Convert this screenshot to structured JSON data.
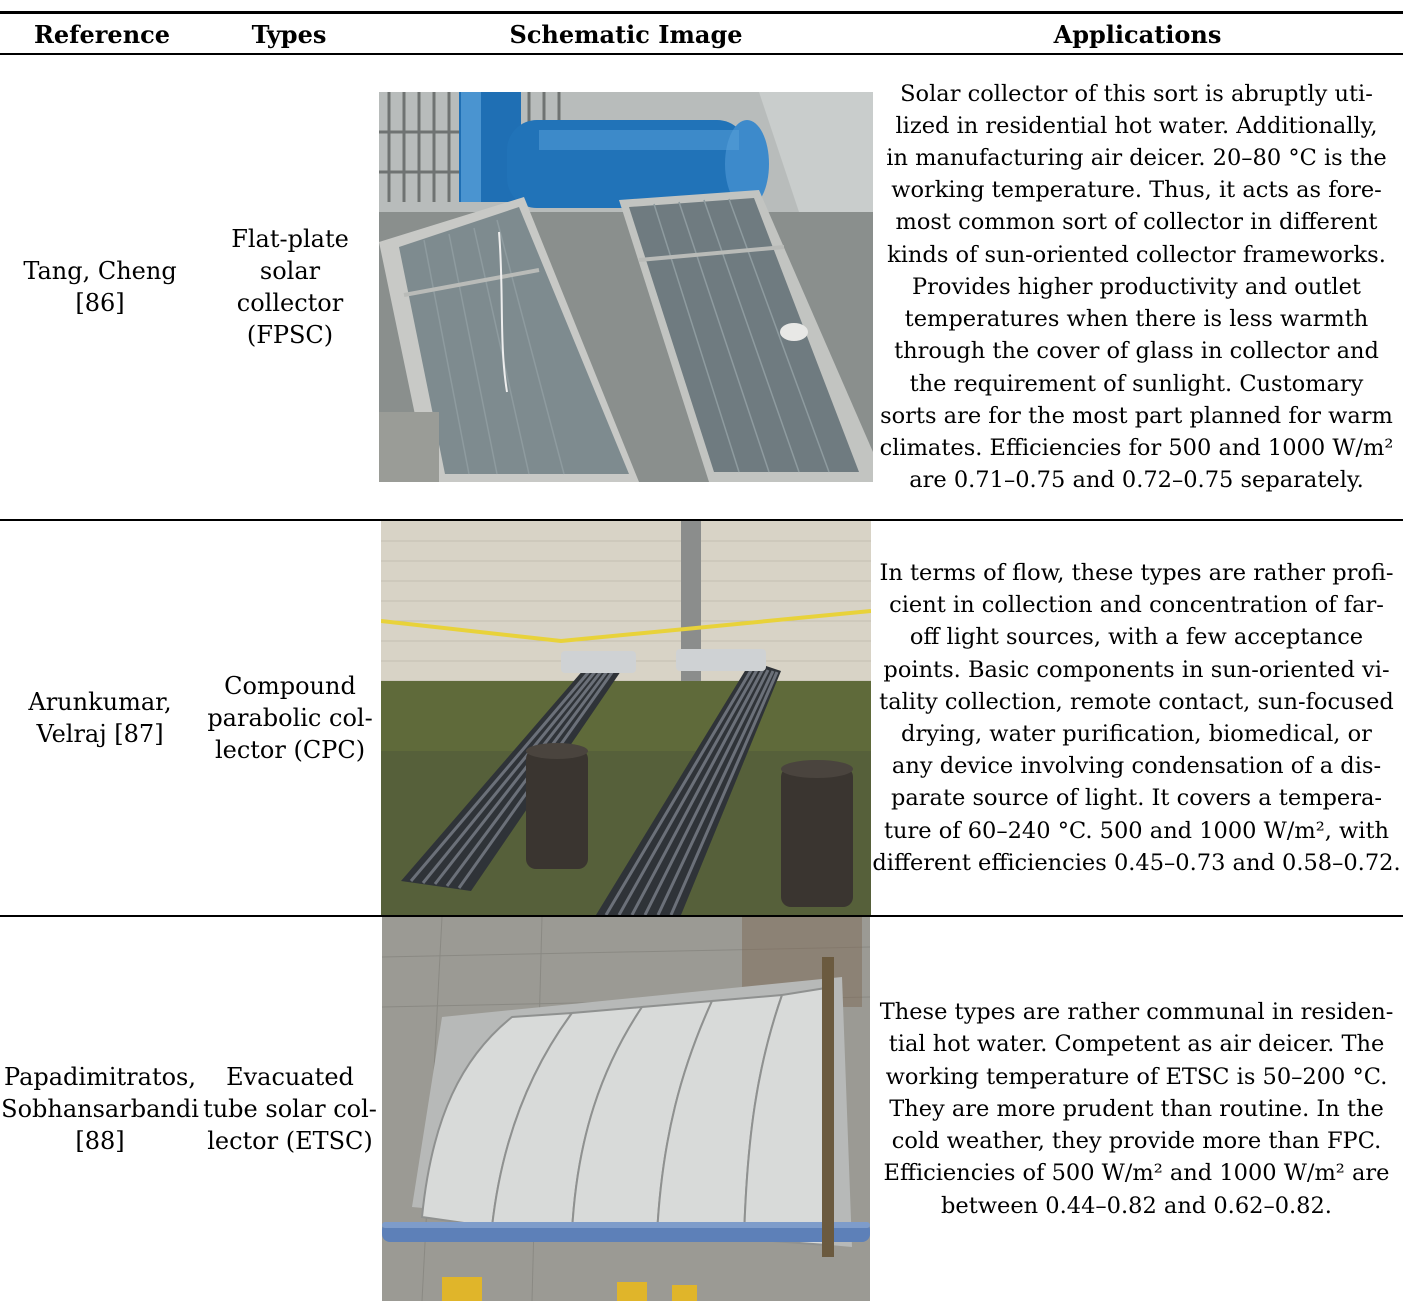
{
  "table": {
    "headers": [
      "Reference",
      "Types",
      "Schematic Image",
      "Applications"
    ],
    "rows": [
      {
        "reference": "Tang, Cheng\n[86]",
        "type": "Flat-plate solar\ncollector\n(FPSC)",
        "image": "flat-plate solar collector photo",
        "application": "Solar collector of this sort is abruptly uti-\nlized in residential hot water. Additionally,\nin manufacturing air deicer. 20–80 °C is the\nworking temperature. Thus, it acts as fore-\nmost common sort of collector in different\nkinds of sun-oriented collector frameworks.\nProvides higher productivity and outlet\ntemperatures when there is less warmth\nthrough the cover of glass in collector and\nthe requirement of sunlight. Customary\nsorts are for the most part planned for warm\nclimates. Efficiencies for 500 and 1000 W/m² \nare 0.71–0.75 and 0.72–0.75 separately."
      },
      {
        "reference": "Arunkumar,\nVelraj [87]",
        "type": "Compound\nparabolic col-\nlector (CPC)",
        "image": "compound parabolic collector photo",
        "application": "In terms of flow, these types are rather profi-\ncient in collection and concentration of far-\noff light sources, with a few acceptance\npoints. Basic components in sun-oriented vi-\ntality collection, remote contact, sun-focused\ndrying, water purification, biomedical, or\nany device involving condensation of a dis-\nparate source of light. It covers a tempera-\nture of 60–240 °C. 500 and 1000 W/m², with\ndifferent efficiencies 0.45–0.73 and 0.58–0.72."
      },
      {
        "reference": "Papadimitratos,\nSobhansarbandi\n[88]",
        "type": "Evacuated\ntube solar col-\nlector (ETSC)",
        "image": "evacuated tube solar collector photo",
        "application": "These types are rather communal in residen-\ntial hot water. Competent as air deicer. The\nworking temperature of ETSC is 50–200 °C.\nThey are more prudent than routine. In the\ncold weather, they provide more than FPC.\nEfficiencies of 500 W/m² and 1000 W/m² are\nbetween 0.44–0.82 and 0.62–0.82."
      }
    ]
  }
}
